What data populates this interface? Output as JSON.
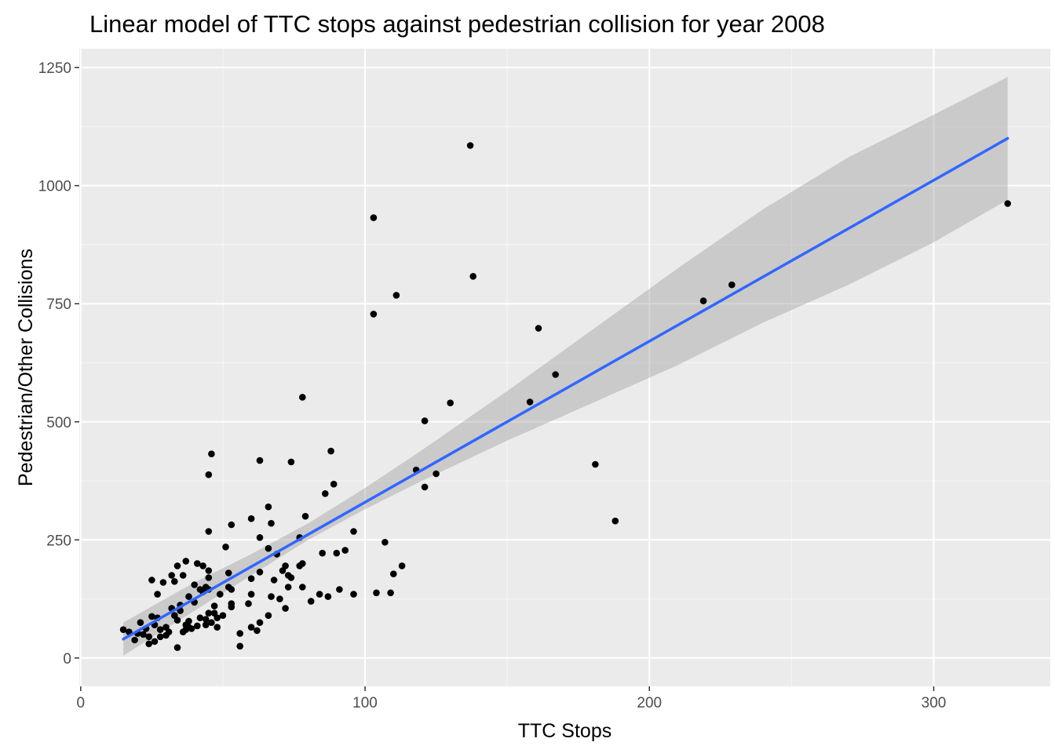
{
  "chart_data": {
    "type": "scatter",
    "title": "Linear model of TTC stops against pedestrian collision for year 2008",
    "xlabel": "TTC Stops",
    "ylabel": "Pedestrian/Other Collisions",
    "xlim": [
      -0.5,
      341
    ],
    "ylim": [
      -60,
      1290
    ],
    "x_ticks": [
      0,
      100,
      200,
      300
    ],
    "x_tick_labels": [
      "0",
      "100",
      "200",
      "300"
    ],
    "x_minor_ticks": [
      50,
      150,
      250
    ],
    "y_ticks": [
      0,
      250,
      500,
      750,
      1000,
      1250
    ],
    "y_tick_labels": [
      "0",
      "250",
      "500",
      "750",
      "1000",
      "1250"
    ],
    "y_minor_ticks": [
      125,
      375,
      625,
      875,
      1125
    ],
    "grid": true,
    "legend": "none",
    "colors": {
      "panel_background": "#ebebeb",
      "grid_major": "#ffffff",
      "point": "#000000",
      "fit_line": "#3366ff",
      "confidence_band": "#999999"
    },
    "points": [
      {
        "x": 15,
        "y": 60
      },
      {
        "x": 17,
        "y": 55
      },
      {
        "x": 19,
        "y": 38
      },
      {
        "x": 20,
        "y": 52
      },
      {
        "x": 21,
        "y": 75
      },
      {
        "x": 22,
        "y": 50
      },
      {
        "x": 23,
        "y": 62
      },
      {
        "x": 24,
        "y": 30
      },
      {
        "x": 24,
        "y": 45
      },
      {
        "x": 25,
        "y": 165
      },
      {
        "x": 25,
        "y": 88
      },
      {
        "x": 26,
        "y": 35
      },
      {
        "x": 26,
        "y": 70
      },
      {
        "x": 27,
        "y": 85
      },
      {
        "x": 27,
        "y": 135
      },
      {
        "x": 28,
        "y": 45
      },
      {
        "x": 28,
        "y": 60
      },
      {
        "x": 29,
        "y": 160
      },
      {
        "x": 30,
        "y": 48
      },
      {
        "x": 30,
        "y": 65
      },
      {
        "x": 31,
        "y": 55
      },
      {
        "x": 32,
        "y": 175
      },
      {
        "x": 32,
        "y": 105
      },
      {
        "x": 33,
        "y": 162
      },
      {
        "x": 33,
        "y": 90
      },
      {
        "x": 34,
        "y": 22
      },
      {
        "x": 34,
        "y": 80
      },
      {
        "x": 34,
        "y": 195
      },
      {
        "x": 35,
        "y": 112
      },
      {
        "x": 35,
        "y": 100
      },
      {
        "x": 36,
        "y": 175
      },
      {
        "x": 36,
        "y": 55
      },
      {
        "x": 37,
        "y": 205
      },
      {
        "x": 37,
        "y": 70
      },
      {
        "x": 37,
        "y": 60
      },
      {
        "x": 38,
        "y": 78
      },
      {
        "x": 38,
        "y": 65
      },
      {
        "x": 38,
        "y": 130
      },
      {
        "x": 39,
        "y": 62
      },
      {
        "x": 40,
        "y": 118
      },
      {
        "x": 40,
        "y": 155
      },
      {
        "x": 41,
        "y": 200
      },
      {
        "x": 41,
        "y": 68
      },
      {
        "x": 42,
        "y": 85
      },
      {
        "x": 42,
        "y": 145
      },
      {
        "x": 43,
        "y": 140
      },
      {
        "x": 43,
        "y": 195
      },
      {
        "x": 44,
        "y": 150
      },
      {
        "x": 44,
        "y": 82
      },
      {
        "x": 44,
        "y": 70
      },
      {
        "x": 45,
        "y": 185
      },
      {
        "x": 45,
        "y": 170
      },
      {
        "x": 45,
        "y": 145
      },
      {
        "x": 45,
        "y": 268
      },
      {
        "x": 45,
        "y": 388
      },
      {
        "x": 45,
        "y": 95
      },
      {
        "x": 46,
        "y": 432
      },
      {
        "x": 46,
        "y": 75
      },
      {
        "x": 47,
        "y": 110
      },
      {
        "x": 47,
        "y": 95
      },
      {
        "x": 48,
        "y": 85
      },
      {
        "x": 48,
        "y": 65
      },
      {
        "x": 49,
        "y": 135
      },
      {
        "x": 50,
        "y": 90
      },
      {
        "x": 51,
        "y": 235
      },
      {
        "x": 52,
        "y": 180
      },
      {
        "x": 52,
        "y": 150
      },
      {
        "x": 53,
        "y": 145
      },
      {
        "x": 53,
        "y": 115
      },
      {
        "x": 53,
        "y": 282
      },
      {
        "x": 53,
        "y": 108
      },
      {
        "x": 56,
        "y": 25
      },
      {
        "x": 56,
        "y": 52
      },
      {
        "x": 59,
        "y": 115
      },
      {
        "x": 60,
        "y": 295
      },
      {
        "x": 60,
        "y": 65
      },
      {
        "x": 60,
        "y": 135
      },
      {
        "x": 60,
        "y": 168
      },
      {
        "x": 62,
        "y": 58
      },
      {
        "x": 63,
        "y": 418
      },
      {
        "x": 63,
        "y": 255
      },
      {
        "x": 63,
        "y": 75
      },
      {
        "x": 63,
        "y": 182
      },
      {
        "x": 66,
        "y": 232
      },
      {
        "x": 66,
        "y": 320
      },
      {
        "x": 66,
        "y": 90
      },
      {
        "x": 67,
        "y": 130
      },
      {
        "x": 67,
        "y": 285
      },
      {
        "x": 68,
        "y": 165
      },
      {
        "x": 69,
        "y": 220
      },
      {
        "x": 70,
        "y": 125
      },
      {
        "x": 71,
        "y": 185
      },
      {
        "x": 72,
        "y": 195
      },
      {
        "x": 72,
        "y": 105
      },
      {
        "x": 73,
        "y": 175
      },
      {
        "x": 73,
        "y": 150
      },
      {
        "x": 74,
        "y": 415
      },
      {
        "x": 74,
        "y": 170
      },
      {
        "x": 77,
        "y": 255
      },
      {
        "x": 77,
        "y": 195
      },
      {
        "x": 78,
        "y": 552
      },
      {
        "x": 78,
        "y": 200
      },
      {
        "x": 78,
        "y": 150
      },
      {
        "x": 79,
        "y": 300
      },
      {
        "x": 81,
        "y": 120
      },
      {
        "x": 84,
        "y": 135
      },
      {
        "x": 85,
        "y": 222
      },
      {
        "x": 86,
        "y": 348
      },
      {
        "x": 87,
        "y": 130
      },
      {
        "x": 88,
        "y": 438
      },
      {
        "x": 89,
        "y": 368
      },
      {
        "x": 90,
        "y": 222
      },
      {
        "x": 91,
        "y": 145
      },
      {
        "x": 93,
        "y": 228
      },
      {
        "x": 96,
        "y": 268
      },
      {
        "x": 96,
        "y": 135
      },
      {
        "x": 103,
        "y": 932
      },
      {
        "x": 103,
        "y": 728
      },
      {
        "x": 104,
        "y": 138
      },
      {
        "x": 107,
        "y": 245
      },
      {
        "x": 109,
        "y": 138
      },
      {
        "x": 110,
        "y": 178
      },
      {
        "x": 111,
        "y": 768
      },
      {
        "x": 113,
        "y": 195
      },
      {
        "x": 118,
        "y": 398
      },
      {
        "x": 121,
        "y": 362
      },
      {
        "x": 121,
        "y": 502
      },
      {
        "x": 125,
        "y": 390
      },
      {
        "x": 130,
        "y": 540
      },
      {
        "x": 137,
        "y": 1085
      },
      {
        "x": 138,
        "y": 808
      },
      {
        "x": 158,
        "y": 542
      },
      {
        "x": 161,
        "y": 698
      },
      {
        "x": 167,
        "y": 600
      },
      {
        "x": 181,
        "y": 410
      },
      {
        "x": 188,
        "y": 290
      },
      {
        "x": 219,
        "y": 756
      },
      {
        "x": 229,
        "y": 790
      },
      {
        "x": 326,
        "y": 962
      }
    ],
    "fit": {
      "method": "linear",
      "x": [
        15,
        326
      ],
      "y": [
        40,
        1100
      ],
      "confidence_band": [
        {
          "x": 15,
          "lower": 5,
          "upper": 75
        },
        {
          "x": 40,
          "lower": 100,
          "upper": 160
        },
        {
          "x": 60,
          "lower": 175,
          "upper": 220
        },
        {
          "x": 80,
          "lower": 250,
          "upper": 285
        },
        {
          "x": 100,
          "lower": 315,
          "upper": 360
        },
        {
          "x": 120,
          "lower": 375,
          "upper": 440
        },
        {
          "x": 150,
          "lower": 460,
          "upper": 565
        },
        {
          "x": 180,
          "lower": 540,
          "upper": 695
        },
        {
          "x": 210,
          "lower": 620,
          "upper": 825
        },
        {
          "x": 240,
          "lower": 710,
          "upper": 950
        },
        {
          "x": 270,
          "lower": 790,
          "upper": 1060
        },
        {
          "x": 300,
          "lower": 880,
          "upper": 1150
        },
        {
          "x": 326,
          "lower": 970,
          "upper": 1230
        }
      ]
    }
  }
}
